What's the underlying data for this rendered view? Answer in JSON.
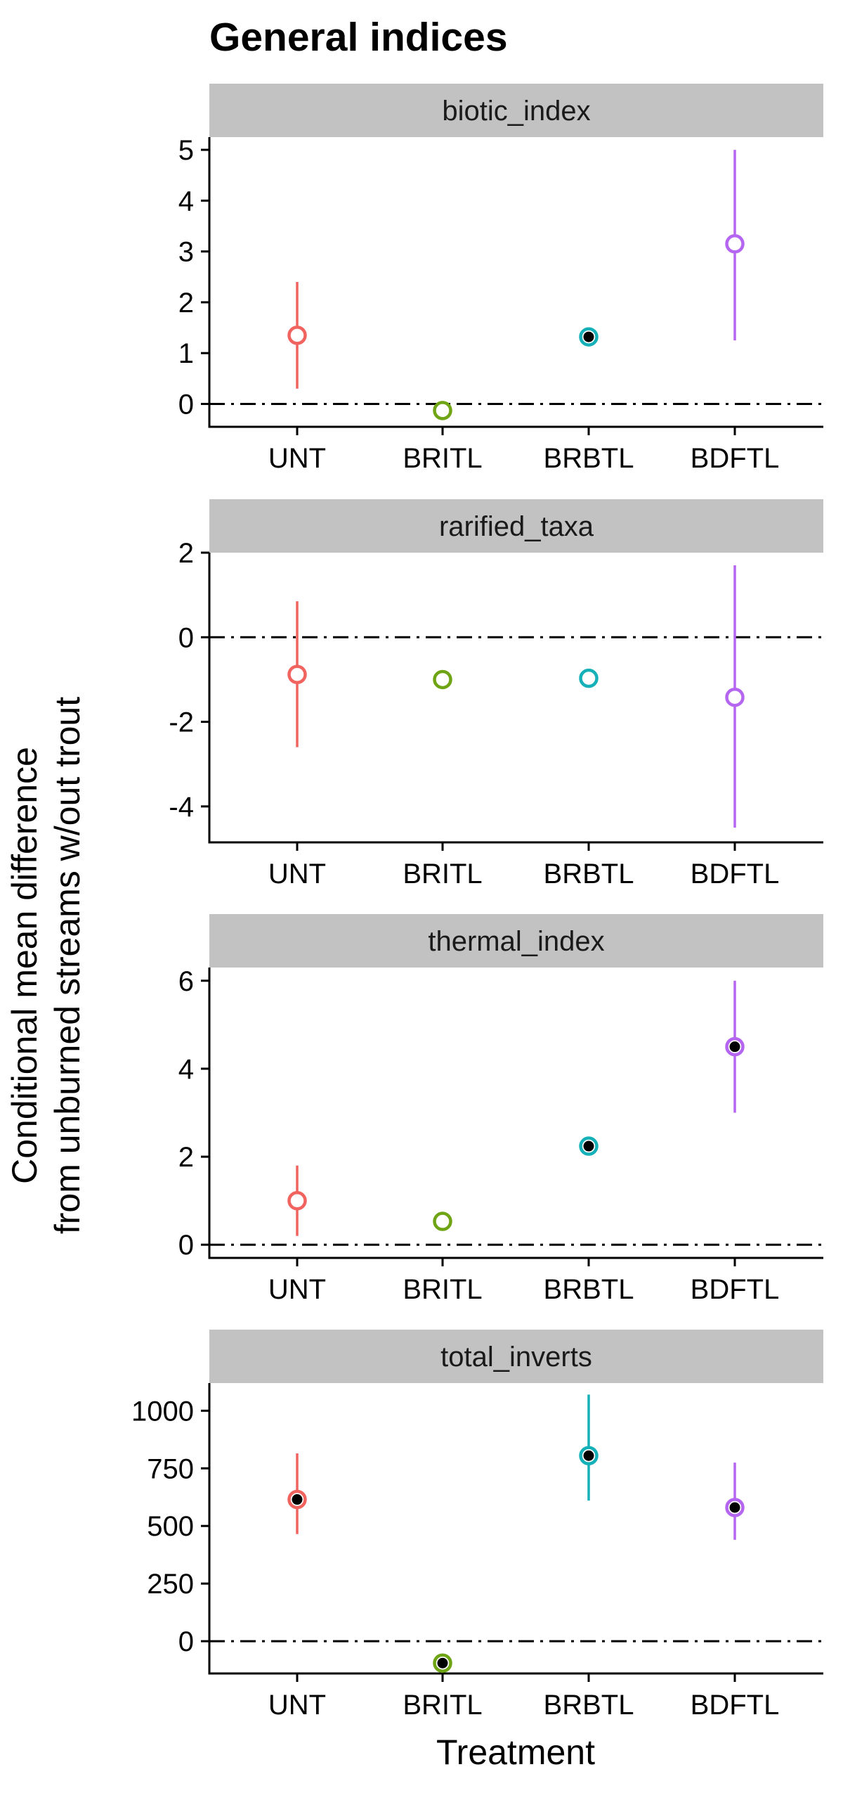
{
  "chart_data": {
    "type": "scatter",
    "title": "General indices",
    "xlabel": "Treatment",
    "ylabel_lines": [
      "Conditional mean difference",
      "from unburned streams w/out trout"
    ],
    "categories": [
      "UNT",
      "BRITL",
      "BRBTL",
      "BDFTL"
    ],
    "colors": {
      "UNT": "#f0635f",
      "BRITL": "#6fa414",
      "BRBTL": "#16b0b8",
      "BDFTL": "#b566f0"
    },
    "reference_line": 0,
    "panels": [
      {
        "label": "biotic_index",
        "ylim": [
          -0.45,
          5.25
        ],
        "yticks": [
          0,
          1,
          2,
          3,
          4,
          5
        ],
        "ytick_labels": [
          "0",
          "1",
          "2",
          "3",
          "4",
          "5"
        ],
        "points": [
          {
            "category": "UNT",
            "y": 1.35,
            "low": 0.3,
            "high": 2.4,
            "significant": false
          },
          {
            "category": "BRITL",
            "y": -0.13,
            "low": null,
            "high": null,
            "significant": false
          },
          {
            "category": "BRBTL",
            "y": 1.32,
            "low": null,
            "high": null,
            "significant": true
          },
          {
            "category": "BDFTL",
            "y": 3.15,
            "low": 1.25,
            "high": 5.0,
            "significant": false
          }
        ]
      },
      {
        "label": "rarified_taxa",
        "ylim": [
          -4.85,
          2.0
        ],
        "yticks": [
          -4,
          -2,
          0,
          2
        ],
        "ytick_labels": [
          "-4",
          "-2",
          "0",
          "2"
        ],
        "points": [
          {
            "category": "UNT",
            "y": -0.88,
            "low": -2.6,
            "high": 0.85,
            "significant": false
          },
          {
            "category": "BRITL",
            "y": -1.0,
            "low": null,
            "high": null,
            "significant": false
          },
          {
            "category": "BRBTL",
            "y": -0.97,
            "low": null,
            "high": null,
            "significant": false
          },
          {
            "category": "BDFTL",
            "y": -1.42,
            "low": -4.5,
            "high": 1.7,
            "significant": false
          }
        ]
      },
      {
        "label": "thermal_index",
        "ylim": [
          -0.3,
          6.3
        ],
        "yticks": [
          0,
          2,
          4,
          6
        ],
        "ytick_labels": [
          "0",
          "2",
          "4",
          "6"
        ],
        "points": [
          {
            "category": "UNT",
            "y": 1.0,
            "low": 0.2,
            "high": 1.8,
            "significant": false
          },
          {
            "category": "BRITL",
            "y": 0.53,
            "low": null,
            "high": null,
            "significant": false
          },
          {
            "category": "BRBTL",
            "y": 2.24,
            "low": null,
            "high": null,
            "significant": true
          },
          {
            "category": "BDFTL",
            "y": 4.5,
            "low": 3.0,
            "high": 6.0,
            "significant": true
          }
        ]
      },
      {
        "label": "total_inverts",
        "ylim": [
          -140,
          1120
        ],
        "yticks": [
          0,
          250,
          500,
          750,
          1000
        ],
        "ytick_labels": [
          "0",
          "250",
          "500",
          "750",
          "1000"
        ],
        "points": [
          {
            "category": "UNT",
            "y": 615,
            "low": 465,
            "high": 815,
            "significant": true
          },
          {
            "category": "BRITL",
            "y": -95,
            "low": null,
            "high": null,
            "significant": true
          },
          {
            "category": "BRBTL",
            "y": 805,
            "low": 610,
            "high": 1070,
            "significant": true
          },
          {
            "category": "BDFTL",
            "y": 580,
            "low": 440,
            "high": 775,
            "significant": true
          }
        ]
      }
    ]
  }
}
